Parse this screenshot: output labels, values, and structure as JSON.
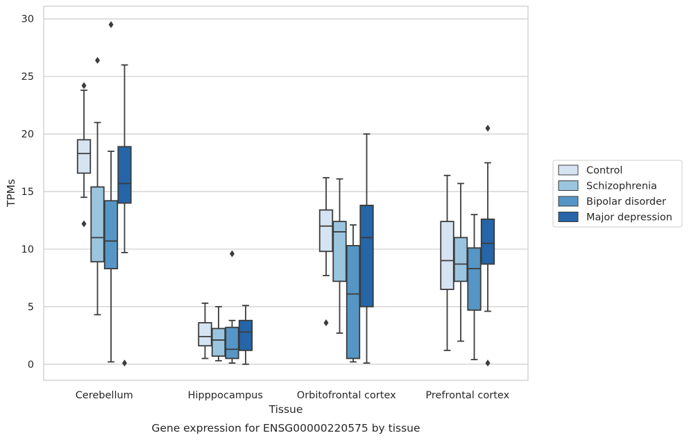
{
  "chart_data": {
    "type": "boxplot",
    "categories": [
      "Cerebellum",
      "Hipppocampus",
      "Orbitofrontal cortex",
      "Prefrontal cortex"
    ],
    "xlabel": "Tissue",
    "ylabel": "TPMs",
    "caption": "Gene expression for ENSG00000220575 by tissue",
    "ylim": [
      -1.4,
      31.1
    ],
    "yticks": [
      0,
      5,
      10,
      15,
      20,
      25,
      30
    ],
    "grid": true,
    "legend_position": "right",
    "series": [
      {
        "name": "Control",
        "color": "#d6e4f2",
        "boxes": [
          {
            "q1": 16.6,
            "median": 18.3,
            "q3": 19.5,
            "whislo": 14.5,
            "whishi": 23.8,
            "fliers": [
              24.2,
              12.2
            ]
          },
          {
            "q1": 1.6,
            "median": 2.4,
            "q3": 3.6,
            "whislo": 0.5,
            "whishi": 5.3,
            "fliers": []
          },
          {
            "q1": 9.8,
            "median": 12.0,
            "q3": 13.4,
            "whislo": 7.7,
            "whishi": 16.2,
            "fliers": [
              3.6
            ]
          },
          {
            "q1": 6.5,
            "median": 9.0,
            "q3": 12.4,
            "whislo": 1.2,
            "whishi": 16.4,
            "fliers": []
          }
        ]
      },
      {
        "name": "Schizophrenia",
        "color": "#9bc5df",
        "boxes": [
          {
            "q1": 8.9,
            "median": 11.0,
            "q3": 15.4,
            "whislo": 4.3,
            "whishi": 21.0,
            "fliers": [
              26.4
            ]
          },
          {
            "q1": 0.7,
            "median": 2.1,
            "q3": 3.1,
            "whislo": 0.3,
            "whishi": 5.0,
            "fliers": []
          },
          {
            "q1": 7.2,
            "median": 11.5,
            "q3": 12.4,
            "whislo": 2.7,
            "whishi": 16.1,
            "fliers": []
          },
          {
            "q1": 7.2,
            "median": 8.7,
            "q3": 11.0,
            "whislo": 2.0,
            "whishi": 15.7,
            "fliers": []
          }
        ]
      },
      {
        "name": "Bipolar disorder",
        "color": "#5596c6",
        "boxes": [
          {
            "q1": 8.3,
            "median": 10.7,
            "q3": 14.2,
            "whislo": 0.2,
            "whishi": 18.5,
            "fliers": [
              29.5
            ]
          },
          {
            "q1": 0.5,
            "median": 1.3,
            "q3": 3.2,
            "whislo": 0.1,
            "whishi": 3.8,
            "fliers": [
              9.6
            ]
          },
          {
            "q1": 0.5,
            "median": 6.1,
            "q3": 10.3,
            "whislo": 0.2,
            "whishi": 12.1,
            "fliers": []
          },
          {
            "q1": 4.7,
            "median": 8.3,
            "q3": 10.1,
            "whislo": 0.4,
            "whishi": 13.0,
            "fliers": []
          }
        ]
      },
      {
        "name": "Major depression",
        "color": "#2565a8",
        "boxes": [
          {
            "q1": 14.0,
            "median": 15.7,
            "q3": 18.9,
            "whislo": 9.7,
            "whishi": 26.0,
            "fliers": [
              0.1
            ]
          },
          {
            "q1": 1.2,
            "median": 2.8,
            "q3": 3.8,
            "whislo": 0.0,
            "whishi": 5.1,
            "fliers": []
          },
          {
            "q1": 5.0,
            "median": 11.0,
            "q3": 13.8,
            "whislo": 0.1,
            "whishi": 20.0,
            "fliers": []
          },
          {
            "q1": 8.7,
            "median": 10.5,
            "q3": 12.6,
            "whislo": 4.6,
            "whishi": 17.5,
            "fliers": [
              20.5,
              0.1
            ]
          }
        ]
      }
    ]
  }
}
